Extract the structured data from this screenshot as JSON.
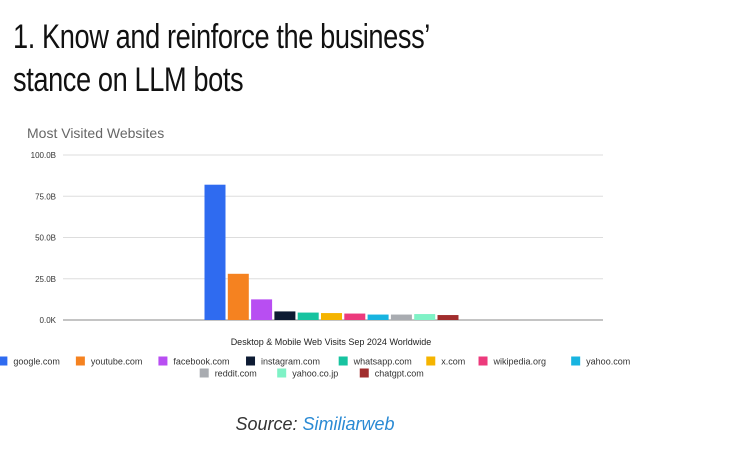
{
  "header": {
    "title": "1. Know and reinforce the business’ stance on LLM bots"
  },
  "chart_data": {
    "type": "bar",
    "title": "Most Visited Websites",
    "xlabel": "Desktop & Mobile Web Visits Sep 2024 Worldwide",
    "ylabel": "",
    "ylim": [
      0,
      100
    ],
    "y_ticks": [
      "0.0K",
      "25.0B",
      "50.0B",
      "75.0B",
      "100.0B"
    ],
    "y_tick_values": [
      0,
      25,
      50,
      75,
      100
    ],
    "unit": "B",
    "grid": true,
    "legend_position": "bottom",
    "series": [
      {
        "name": "google.com",
        "value": 82,
        "color": "#2f6bf0"
      },
      {
        "name": "youtube.com",
        "value": 28,
        "color": "#f58220"
      },
      {
        "name": "facebook.com",
        "value": 12.5,
        "color": "#b84ef2"
      },
      {
        "name": "instagram.com",
        "value": 5.2,
        "color": "#0d1b33"
      },
      {
        "name": "whatsapp.com",
        "value": 4.5,
        "color": "#17c3a0"
      },
      {
        "name": "x.com",
        "value": 4.2,
        "color": "#f5b400"
      },
      {
        "name": "wikipedia.org",
        "value": 3.9,
        "color": "#ec3a7c"
      },
      {
        "name": "yahoo.com",
        "value": 3.3,
        "color": "#18b4e0"
      },
      {
        "name": "reddit.com",
        "value": 3.3,
        "color": "#a9acb1"
      },
      {
        "name": "yahoo.co.jp",
        "value": 3.6,
        "color": "#7ff2c6"
      },
      {
        "name": "chatgpt.com",
        "value": 3.0,
        "color": "#a12d2d"
      }
    ]
  },
  "source": {
    "label": "Source:",
    "link_text": "Similiarweb"
  }
}
